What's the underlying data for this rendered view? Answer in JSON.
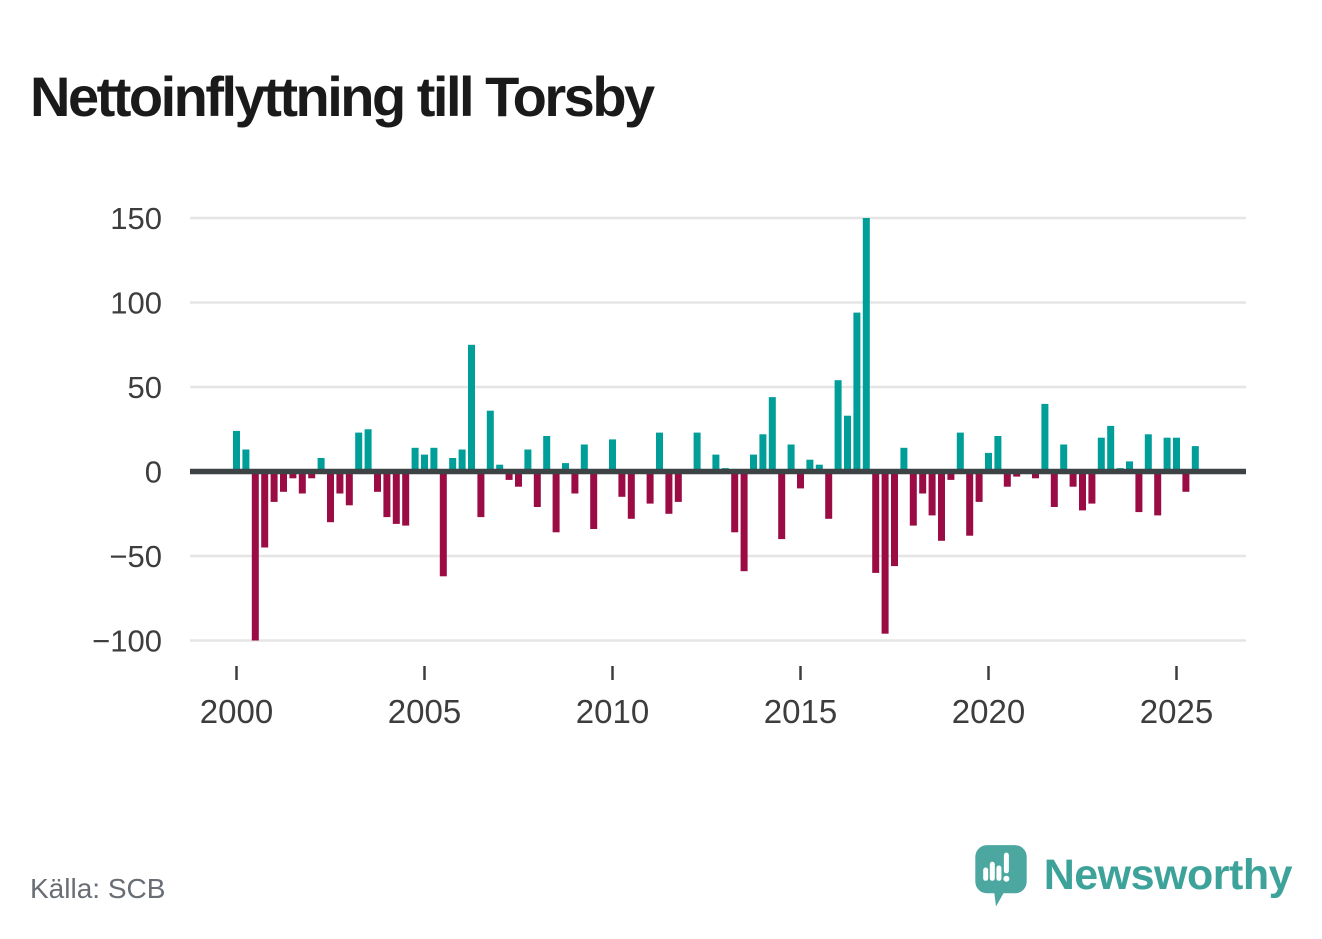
{
  "title": "Nettoinflyttning till Torsby",
  "source": "Källa: SCB",
  "branding": {
    "wordmark": "Newsworthy",
    "logo_icon": "speech-bubble-with-bar-chart-and-exclamation"
  },
  "colors": {
    "positive_bar": "#009e98",
    "negative_bar": "#9b0c45",
    "zero_axis": "#3d4245",
    "gridline": "#e5e5e5",
    "tick_label": "#3d3d3d",
    "tick_mark": "#3d3d3d",
    "title_text": "#1a1a1a",
    "source_text": "#696e75",
    "brand_teal": "#3da39a",
    "logo_bubble": "#4ca7a0"
  },
  "chart_data": {
    "type": "bar",
    "title": "Nettoinflyttning till Torsby",
    "xlabel": "",
    "ylabel": "",
    "x_unit": "quarterly bars",
    "start_year": 2000,
    "start_quarter": 1,
    "end_year": 2025,
    "end_quarter": 3,
    "values": [
      24,
      13,
      -100,
      -45,
      -18,
      -12,
      -4,
      -13,
      -4,
      8,
      -30,
      -13,
      -20,
      23,
      25,
      -12,
      -27,
      -31,
      -32,
      14,
      10,
      14,
      -62,
      8,
      13,
      75,
      -27,
      36,
      4,
      -5,
      -9,
      13,
      -21,
      21,
      -36,
      5,
      -13,
      16,
      -34,
      0,
      19,
      -15,
      -28,
      0,
      -19,
      23,
      -25,
      -18,
      0,
      23,
      0,
      10,
      2,
      -36,
      -59,
      10,
      22,
      44,
      -40,
      16,
      -10,
      7,
      4,
      -28,
      54,
      33,
      94,
      150,
      -60,
      -96,
      -56,
      14,
      -32,
      -13,
      -26,
      -41,
      -5,
      23,
      -38,
      -18,
      11,
      21,
      -9,
      -3,
      0,
      -4,
      40,
      -21,
      16,
      -9,
      -23,
      -19,
      20,
      27,
      2,
      6,
      -24,
      22,
      -26,
      20,
      20,
      -12,
      15
    ],
    "y_ticks": [
      150,
      100,
      50,
      0,
      -50,
      -100
    ],
    "y_tick_labels": [
      "150",
      "100",
      "50",
      "0",
      "−50",
      "−100"
    ],
    "x_ticks": [
      2000,
      2005,
      2010,
      2015,
      2020,
      2025
    ],
    "x_tick_labels": [
      "2000",
      "2005",
      "2010",
      "2015",
      "2020",
      "2025"
    ],
    "ylim": [
      -110,
      160
    ],
    "grid": true,
    "legend": false,
    "positive_color_meaning": "net in-migration",
    "negative_color_meaning": "net out-migration"
  }
}
